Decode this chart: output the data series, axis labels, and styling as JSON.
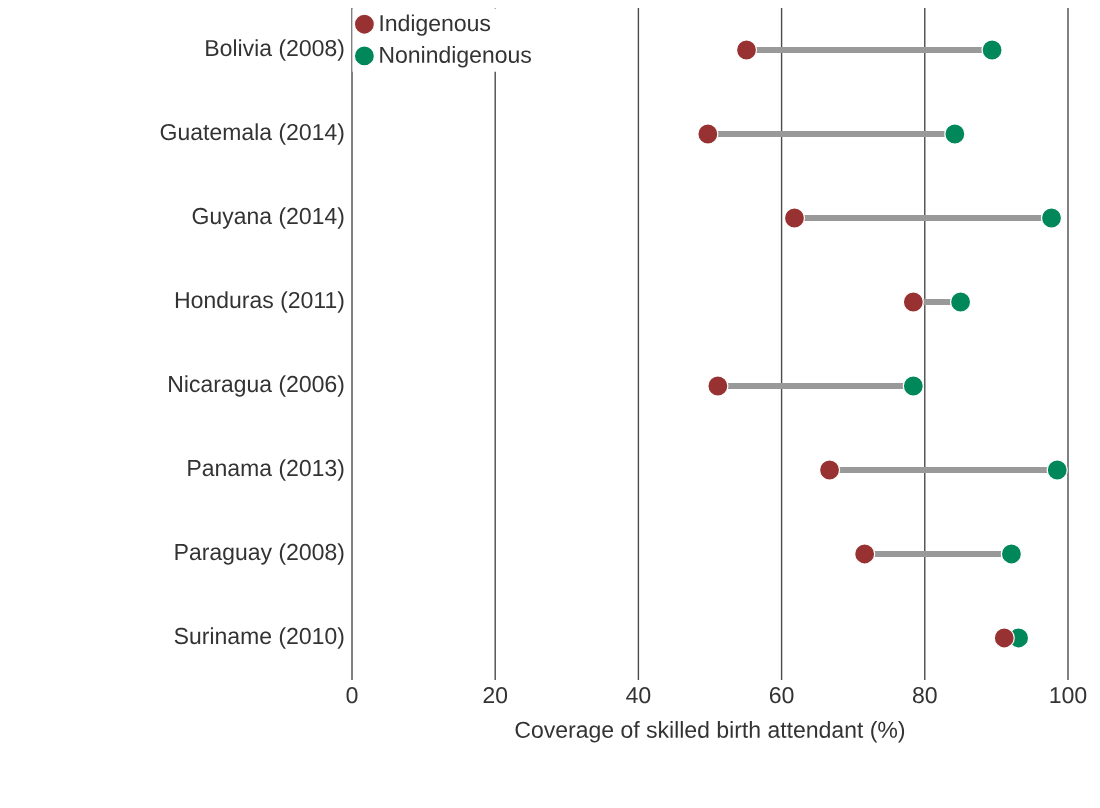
{
  "chart_data": {
    "type": "scatter",
    "orientation": "horizontal",
    "xlabel": "Coverage of skilled birth attendant (%)",
    "categories": [
      "Bolivia (2008)",
      "Guatemala (2014)",
      "Guyana (2014)",
      "Honduras (2011)",
      "Nicaragua (2006)",
      "Panama (2013)",
      "Paraguay (2008)",
      "Suriname (2010)"
    ],
    "series": [
      {
        "name": "Indigenous",
        "color": "#983232",
        "values": [
          55.1,
          49.7,
          61.8,
          78.4,
          51.1,
          66.7,
          71.6,
          91.1
        ]
      },
      {
        "name": "Nonindigenous",
        "color": "#00875a",
        "values": [
          89.4,
          84.2,
          97.7,
          85,
          78.4,
          98.5,
          92.1,
          93.1
        ]
      }
    ],
    "xlim": [
      0,
      100
    ],
    "xticks": [
      0,
      20,
      40,
      60,
      80,
      100
    ],
    "grid": "x",
    "legend": "top left"
  }
}
